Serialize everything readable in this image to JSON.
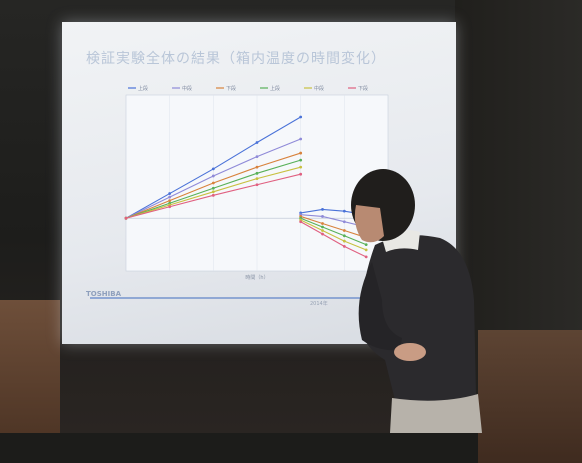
{
  "slide": {
    "title": "検証実験全体の結果（箱内温度の時間変化）",
    "logo_text": "TOSHIBA",
    "footer_text": "2014年"
  },
  "chart_data": {
    "type": "line",
    "legend": [
      "上段",
      "中段",
      "下段",
      "上段",
      "中段",
      "下段"
    ],
    "x": [
      0,
      10,
      20,
      30,
      40
    ],
    "series": [
      {
        "values": [
          0.0,
          2.8,
          5.6,
          8.6,
          11.5
        ],
        "color": "#4a72d8"
      },
      {
        "values": [
          0.0,
          2.4,
          4.8,
          7.0,
          9.0
        ],
        "color": "#8f8ad8"
      },
      {
        "values": [
          0.0,
          2.0,
          4.0,
          5.8,
          7.4
        ],
        "color": "#d8823c"
      },
      {
        "values": [
          0.0,
          1.7,
          3.4,
          5.1,
          6.6
        ],
        "color": "#58b058"
      },
      {
        "values": [
          0.0,
          1.5,
          3.0,
          4.5,
          5.8
        ],
        "color": "#c8c040"
      },
      {
        "values": [
          0.0,
          1.3,
          2.6,
          3.8,
          5.0
        ],
        "color": "#e06080"
      }
    ],
    "series_b": [
      {
        "values": [
          0.6,
          1.0,
          0.8,
          0.4
        ],
        "color": "#4a72d8"
      },
      {
        "values": [
          0.4,
          0.2,
          -0.4,
          -1.0
        ],
        "color": "#8f8ad8"
      },
      {
        "values": [
          0.2,
          -0.6,
          -1.4,
          -2.2
        ],
        "color": "#d8823c"
      },
      {
        "values": [
          0.0,
          -1.0,
          -2.0,
          -3.0
        ],
        "color": "#58b058"
      },
      {
        "values": [
          -0.2,
          -1.4,
          -2.6,
          -3.6
        ],
        "color": "#c8c040"
      },
      {
        "values": [
          -0.4,
          -1.8,
          -3.2,
          -4.4
        ],
        "color": "#e06080"
      }
    ],
    "x_b": [
      40,
      45,
      50,
      55
    ],
    "xlim": [
      0,
      60
    ],
    "ylim": [
      -6,
      14
    ],
    "xlabel": "時間（h）"
  }
}
